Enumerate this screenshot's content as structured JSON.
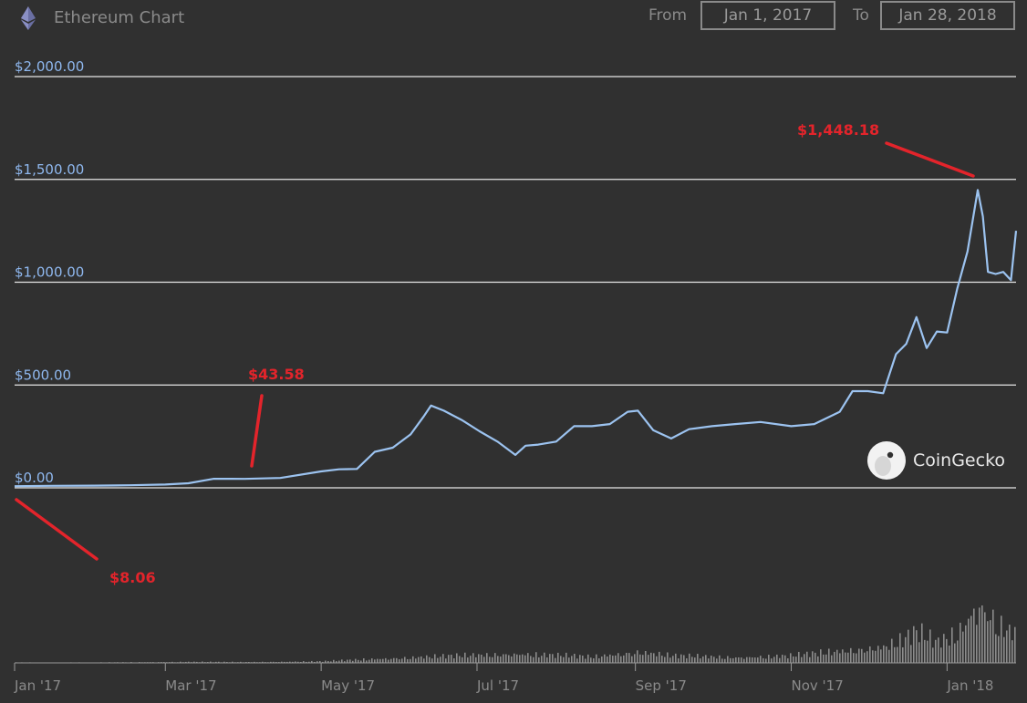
{
  "header": {
    "title": "Ethereum Chart",
    "from_label": "From",
    "to_label": "To",
    "from_value": "Jan 1, 2017",
    "to_value": "Jan 28, 2018",
    "icon": "ethereum-logo-icon"
  },
  "watermark": {
    "text": "CoinGecko",
    "icon": "coingecko-logo-icon"
  },
  "colors": {
    "background": "#303030",
    "price_line": "#9cc3f0",
    "grid": "#e6e6e6",
    "y_tick": "#8fb8ef",
    "annotation": "#e3242b",
    "volume": "#8c8c8c"
  },
  "annotations": [
    {
      "label": "$8.06",
      "date": "2017-01-01",
      "value": 8.06
    },
    {
      "label": "$43.58",
      "date": "2017-04-01",
      "value": 43.58
    },
    {
      "label": "$1,448.18",
      "date": "2018-01-13",
      "value": 1448.18
    }
  ],
  "chart_data": {
    "type": "line",
    "title": "Ethereum Chart",
    "xlabel": "",
    "ylabel": "",
    "x_tick_labels": [
      "Jan '17",
      "Mar '17",
      "May '17",
      "Jul '17",
      "Sep '17",
      "Nov '17",
      "Jan '18"
    ],
    "y_tick_labels": [
      "$0.00",
      "$500.00",
      "$1,000.00",
      "$1,500.00",
      "$2,000.00"
    ],
    "ylim": [
      0,
      2000
    ],
    "xlim": [
      "2017-01-01",
      "2018-01-28"
    ],
    "grid": true,
    "legend": "none",
    "series": [
      {
        "values_kind": "price_usd",
        "x": [
          "2017-01-01",
          "2017-01-15",
          "2017-02-01",
          "2017-02-15",
          "2017-03-01",
          "2017-03-10",
          "2017-03-20",
          "2017-04-01",
          "2017-04-15",
          "2017-05-01",
          "2017-05-08",
          "2017-05-15",
          "2017-05-22",
          "2017-05-29",
          "2017-06-05",
          "2017-06-10",
          "2017-06-13",
          "2017-06-18",
          "2017-06-25",
          "2017-07-02",
          "2017-07-09",
          "2017-07-16",
          "2017-07-20",
          "2017-07-25",
          "2017-08-01",
          "2017-08-08",
          "2017-08-15",
          "2017-08-22",
          "2017-08-29",
          "2017-09-02",
          "2017-09-08",
          "2017-09-15",
          "2017-09-22",
          "2017-10-01",
          "2017-10-10",
          "2017-10-20",
          "2017-11-01",
          "2017-11-10",
          "2017-11-20",
          "2017-11-25",
          "2017-12-01",
          "2017-12-07",
          "2017-12-12",
          "2017-12-16",
          "2017-12-20",
          "2017-12-24",
          "2017-12-28",
          "2018-01-01",
          "2018-01-05",
          "2018-01-09",
          "2018-01-13",
          "2018-01-15",
          "2018-01-17",
          "2018-01-20",
          "2018-01-23",
          "2018-01-26",
          "2018-01-28"
        ],
        "y": [
          8.06,
          9.8,
          10.8,
          12.5,
          16,
          22,
          44,
          43.58,
          48,
          80,
          90,
          92,
          175,
          195,
          260,
          345,
          400,
          375,
          330,
          275,
          225,
          160,
          205,
          210,
          225,
          300,
          300,
          310,
          370,
          375,
          280,
          240,
          285,
          300,
          310,
          320,
          300,
          310,
          370,
          470,
          470,
          460,
          650,
          700,
          830,
          680,
          760,
          755,
          970,
          1150,
          1448.18,
          1320,
          1050,
          1040,
          1050,
          1010,
          1250
        ]
      }
    ],
    "volume": {
      "values_kind": "relative_volume",
      "x": [
        "2017-01-01",
        "2017-02-01",
        "2017-03-10",
        "2017-04-01",
        "2017-05-01",
        "2017-05-22",
        "2017-06-12",
        "2017-07-16",
        "2017-08-15",
        "2017-09-02",
        "2017-09-15",
        "2017-10-10",
        "2017-11-01",
        "2017-11-25",
        "2017-12-07",
        "2017-12-12",
        "2017-12-20",
        "2017-12-28",
        "2018-01-05",
        "2018-01-09",
        "2018-01-13",
        "2018-01-17",
        "2018-01-23",
        "2018-01-28"
      ],
      "y": [
        0.5,
        0.4,
        1.0,
        0.8,
        1.5,
        4.0,
        6.0,
        9.0,
        6.0,
        11.0,
        7.0,
        5.5,
        7.0,
        13.0,
        16.0,
        20.0,
        30.0,
        20.0,
        30.0,
        45.0,
        60.0,
        50.0,
        35.0,
        28.0
      ]
    }
  }
}
